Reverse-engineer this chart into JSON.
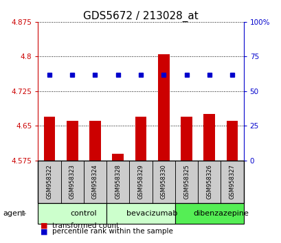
{
  "title": "GDS5672 / 213028_at",
  "samples": [
    "GSM958322",
    "GSM958323",
    "GSM958324",
    "GSM958328",
    "GSM958329",
    "GSM958330",
    "GSM958325",
    "GSM958326",
    "GSM958327"
  ],
  "red_values": [
    4.67,
    4.66,
    4.66,
    4.59,
    4.67,
    4.805,
    4.67,
    4.675,
    4.66
  ],
  "blue_values": [
    62,
    62,
    62,
    62,
    62,
    62,
    62,
    62,
    62
  ],
  "y_min": 4.575,
  "y_max": 4.875,
  "y_ticks_left": [
    4.575,
    4.65,
    4.725,
    4.8,
    4.875
  ],
  "y_ticks_right": [
    0,
    25,
    50,
    75,
    100
  ],
  "groups": [
    {
      "label": "control",
      "start": 0,
      "end": 3,
      "color": "#ccffcc"
    },
    {
      "label": "bevacizumab",
      "start": 3,
      "end": 6,
      "color": "#ccffcc"
    },
    {
      "label": "dibenzazepine",
      "start": 6,
      "end": 9,
      "color": "#55ee55"
    }
  ],
  "bar_color": "#cc0000",
  "dot_color": "#0000cc",
  "bar_width": 0.5,
  "left_tick_color": "#cc0000",
  "right_tick_color": "#0000cc",
  "legend_bar_label": "transformed count",
  "legend_dot_label": "percentile rank within the sample",
  "agent_label": "agent",
  "sample_bg_color": "#cccccc",
  "title_fontsize": 11,
  "tick_fontsize": 7.5,
  "sample_fontsize": 6,
  "group_fontsize": 8,
  "legend_fontsize": 7.5
}
